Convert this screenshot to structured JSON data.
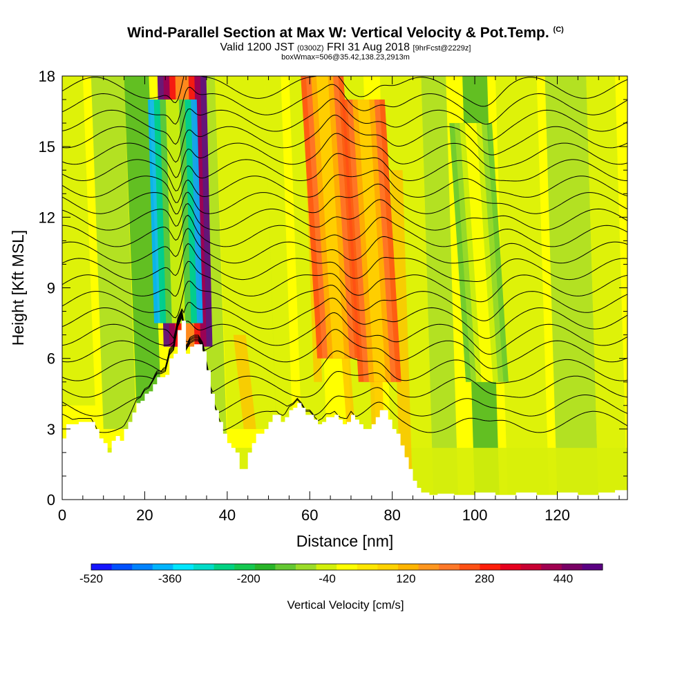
{
  "header": {
    "title_main": "Wind-Parallel Section at Max W: Vertical Velocity & Pot.Temp.",
    "title_mark": "(C)",
    "valid_a": "Valid 1200 JST",
    "valid_b": "(0300Z)",
    "valid_c": "FRI 31 Aug 2018",
    "valid_d": "[9hrFcst@2229z]",
    "box_line": "boxWmax=506@35.42,138.23,2913m"
  },
  "colorbar": {
    "label": "Vertical Velocity [cm/s]",
    "tick_labels": [
      "-520",
      "-360",
      "-200",
      "-40",
      "120",
      "280",
      "440"
    ],
    "colors": [
      "#1414ff",
      "#0050ff",
      "#0082ff",
      "#00b4ff",
      "#00e6ff",
      "#00dcc8",
      "#00d282",
      "#14c850",
      "#28b428",
      "#64c832",
      "#9bdc28",
      "#d2f00a",
      "#ffff00",
      "#ffe600",
      "#ffd200",
      "#ffb400",
      "#ff961e",
      "#ff7828",
      "#ff5014",
      "#ff1e0a",
      "#e6001e",
      "#c80032",
      "#a00050",
      "#780064",
      "#5a0082"
    ]
  },
  "chart_data": {
    "type": "heatmap",
    "title": "Wind-Parallel Section at Max W: Vertical Velocity & Pot.Temp.",
    "xlabel": "Distance [nm]",
    "ylabel": "Height [Kft MSL]",
    "xlim": [
      0,
      137
    ],
    "ylim": [
      0,
      18
    ],
    "xticks": [
      0,
      20,
      40,
      60,
      80,
      100,
      120
    ],
    "yticks": [
      0,
      3,
      6,
      9,
      12,
      15,
      18
    ],
    "colorbar_range": [
      -520,
      520
    ],
    "colorbar_step": 40,
    "max_w": 506,
    "max_w_location": "35.42,138.23",
    "max_w_height_m": 2913,
    "terrain": [
      [
        0,
        2.6
      ],
      [
        1,
        3.2
      ],
      [
        4,
        3.3
      ],
      [
        7,
        3.3
      ],
      [
        8,
        3.0
      ],
      [
        9,
        2.6
      ],
      [
        10,
        2.4
      ],
      [
        11,
        2.0
      ],
      [
        12,
        2.5
      ],
      [
        13,
        2.7
      ],
      [
        14,
        2.5
      ],
      [
        15,
        3.0
      ],
      [
        16,
        3.3
      ],
      [
        17,
        3.7
      ],
      [
        18,
        4.1
      ],
      [
        19,
        4.2
      ],
      [
        20,
        4.5
      ],
      [
        21,
        4.6
      ],
      [
        22,
        4.9
      ],
      [
        23,
        5.2
      ],
      [
        24,
        5.2
      ],
      [
        25,
        5.3
      ],
      [
        26,
        6.0
      ],
      [
        27,
        6.2
      ],
      [
        28,
        7.2
      ],
      [
        29,
        7.6
      ],
      [
        30,
        6.2
      ],
      [
        31,
        6.5
      ],
      [
        32,
        6.6
      ],
      [
        33,
        6.6
      ],
      [
        34,
        6.3
      ],
      [
        35,
        5.5
      ],
      [
        36,
        4.5
      ],
      [
        37,
        3.8
      ],
      [
        38,
        3.3
      ],
      [
        39,
        2.8
      ],
      [
        40,
        2.4
      ],
      [
        41,
        2.2
      ],
      [
        42,
        2.0
      ],
      [
        43,
        1.3
      ],
      [
        44,
        1.3
      ],
      [
        45,
        2.0
      ],
      [
        46,
        2.4
      ],
      [
        47,
        2.8
      ],
      [
        48,
        2.8
      ],
      [
        49,
        3.0
      ],
      [
        50,
        3.3
      ],
      [
        51,
        3.6
      ],
      [
        52,
        3.6
      ],
      [
        53,
        3.3
      ],
      [
        54,
        3.5
      ],
      [
        55,
        3.8
      ],
      [
        56,
        3.9
      ],
      [
        57,
        4.1
      ],
      [
        58,
        3.9
      ],
      [
        59,
        3.6
      ],
      [
        60,
        3.6
      ],
      [
        61,
        3.4
      ],
      [
        62,
        3.2
      ],
      [
        63,
        3.3
      ],
      [
        64,
        3.5
      ],
      [
        65,
        3.5
      ],
      [
        66,
        3.6
      ],
      [
        67,
        3.4
      ],
      [
        68,
        3.2
      ],
      [
        69,
        3.3
      ],
      [
        70,
        3.6
      ],
      [
        71,
        3.4
      ],
      [
        72,
        3.2
      ],
      [
        73,
        3.0
      ],
      [
        74,
        3.0
      ],
      [
        75,
        3.2
      ],
      [
        76,
        3.5
      ],
      [
        77,
        3.8
      ],
      [
        78,
        3.8
      ],
      [
        79,
        3.4
      ],
      [
        80,
        3.0
      ],
      [
        81,
        2.8
      ],
      [
        82,
        2.3
      ],
      [
        83,
        1.8
      ],
      [
        84,
        1.3
      ],
      [
        85,
        0.8
      ],
      [
        86,
        0.5
      ],
      [
        87,
        0.3
      ],
      [
        89,
        0.2
      ],
      [
        91,
        0.25
      ],
      [
        95,
        0.2
      ],
      [
        100,
        0.3
      ],
      [
        105,
        0.2
      ],
      [
        110,
        0.3
      ],
      [
        115,
        0.2
      ],
      [
        120,
        0.3
      ],
      [
        125,
        0.2
      ],
      [
        130,
        0.3
      ],
      [
        134,
        0.4
      ],
      [
        137,
        0.3
      ]
    ],
    "isentropes_base_kft": [
      3.3,
      4.0,
      4.8,
      5.5,
      6.3,
      7.0,
      7.7,
      8.4,
      9.1,
      9.8,
      10.5,
      11.2,
      11.9,
      12.6,
      13.3,
      14.0,
      14.7,
      15.4,
      16.1,
      16.8,
      17.5
    ],
    "features": [
      {
        "name": "updraft",
        "x": 30.5,
        "y_range": [
          6.5,
          18
        ],
        "w": 506
      },
      {
        "name": "downdraft",
        "x": 28.2,
        "y_range": [
          7.5,
          17
        ],
        "w": -400
      },
      {
        "name": "updraft",
        "x": 67,
        "y_range": [
          6,
          18
        ],
        "w": 200
      },
      {
        "name": "updraft",
        "x": 77,
        "y_range": [
          5,
          17
        ],
        "w": 200
      },
      {
        "name": "downdraft",
        "x": 103,
        "y_range": [
          5,
          16
        ],
        "w": -150
      }
    ]
  }
}
